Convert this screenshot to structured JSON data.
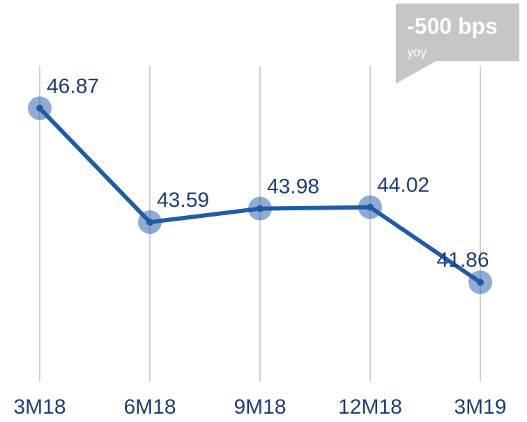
{
  "chart_data": {
    "type": "line",
    "categories": [
      "3M18",
      "6M18",
      "9M18",
      "12M18",
      "3M19"
    ],
    "series": [
      {
        "color": "#1f5ca8",
        "values": [
          46.87,
          43.59,
          43.98,
          44.02,
          41.86
        ]
      }
    ],
    "ylim": [
      39,
      48
    ],
    "grid": true,
    "annotation": {
      "headline": "-500 bps",
      "note": "yoy"
    }
  }
}
